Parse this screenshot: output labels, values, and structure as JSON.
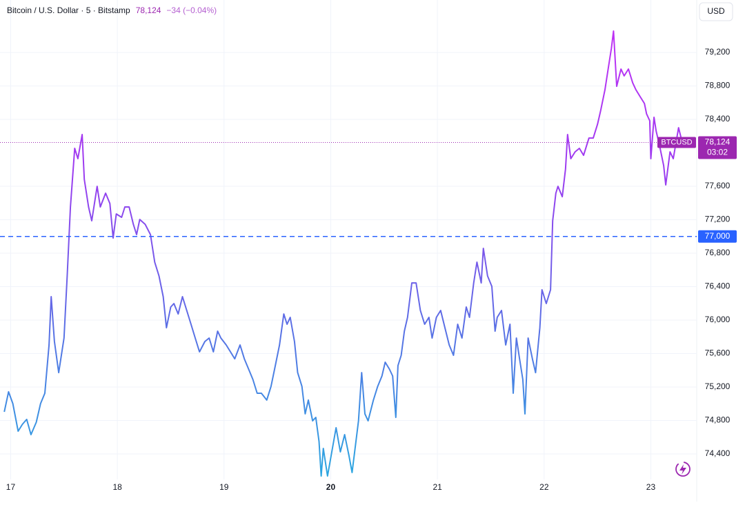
{
  "chart_data": {
    "type": "line",
    "title": "Bitcoin / U.S. Dollar · 5 · Bitstamp",
    "price": "78,124",
    "change": "−34 (−0.04%)",
    "currency": "USD",
    "x": [
      16.94,
      16.98,
      17.02,
      17.07,
      17.11,
      17.15,
      17.19,
      17.24,
      17.28,
      17.32,
      17.36,
      17.38,
      17.41,
      17.45,
      17.5,
      17.53,
      17.56,
      17.6,
      17.63,
      17.67,
      17.69,
      17.73,
      17.76,
      17.81,
      17.84,
      17.89,
      17.93,
      17.96,
      17.99,
      18.04,
      18.07,
      18.11,
      18.15,
      18.18,
      18.21,
      18.26,
      18.31,
      18.35,
      18.39,
      18.43,
      18.46,
      18.5,
      18.53,
      18.57,
      18.61,
      18.65,
      18.69,
      18.73,
      18.77,
      18.82,
      18.86,
      18.9,
      18.94,
      18.97,
      19.02,
      19.06,
      19.1,
      19.15,
      19.19,
      19.23,
      19.27,
      19.31,
      19.35,
      19.4,
      19.44,
      19.48,
      19.52,
      19.56,
      19.59,
      19.62,
      19.66,
      19.69,
      19.73,
      19.76,
      19.79,
      19.83,
      19.86,
      19.89,
      19.91,
      19.93,
      19.97,
      20.01,
      20.05,
      20.09,
      20.13,
      20.17,
      20.2,
      20.22,
      20.26,
      20.29,
      20.32,
      20.35,
      20.4,
      20.44,
      20.48,
      20.51,
      20.55,
      20.58,
      20.61,
      20.63,
      20.66,
      20.69,
      20.72,
      20.76,
      20.8,
      20.84,
      20.88,
      20.92,
      20.95,
      20.99,
      21.03,
      21.07,
      21.11,
      21.15,
      21.19,
      21.23,
      21.27,
      21.3,
      21.34,
      21.37,
      21.41,
      21.43,
      21.47,
      21.51,
      21.54,
      21.56,
      21.6,
      21.64,
      21.68,
      21.71,
      21.74,
      21.77,
      21.8,
      21.82,
      21.85,
      21.89,
      21.92,
      21.96,
      21.98,
      22.02,
      22.06,
      22.08,
      22.11,
      22.13,
      22.17,
      22.2,
      22.22,
      22.25,
      22.29,
      22.33,
      22.37,
      22.42,
      22.46,
      22.5,
      22.53,
      22.57,
      22.6,
      22.63,
      22.65,
      22.68,
      22.72,
      22.75,
      22.79,
      22.83,
      22.86,
      22.9,
      22.94,
      22.96,
      22.99,
      23.0,
      23.03,
      23.05,
      23.08,
      23.12,
      23.14,
      23.18,
      23.21,
      23.26,
      23.3,
      23.34,
      23.41
    ],
    "series": [
      {
        "name": "BTCUSD",
        "gradient": [
          "#2aa8e0",
          "#5a6fe5",
          "#9b3cf0",
          "#c130f5"
        ],
        "values": [
          74903,
          75143,
          75002,
          74672,
          74755,
          74813,
          74631,
          74780,
          75002,
          75126,
          75703,
          76281,
          75745,
          75373,
          75786,
          76528,
          77353,
          78054,
          77930,
          78219,
          77683,
          77353,
          77188,
          77600,
          77353,
          77518,
          77394,
          76982,
          77270,
          77229,
          77353,
          77353,
          77146,
          77023,
          77204,
          77146,
          77023,
          76693,
          76528,
          76281,
          75909,
          76157,
          76198,
          76074,
          76281,
          76116,
          75951,
          75786,
          75621,
          75745,
          75786,
          75621,
          75868,
          75786,
          75703,
          75621,
          75538,
          75703,
          75538,
          75415,
          75291,
          75126,
          75126,
          75044,
          75208,
          75456,
          75703,
          76074,
          75951,
          76033,
          75745,
          75373,
          75208,
          74879,
          75044,
          74796,
          74837,
          74549,
          74136,
          74466,
          74136,
          74425,
          74714,
          74425,
          74631,
          74384,
          74178,
          74384,
          74796,
          75373,
          74879,
          74796,
          75044,
          75208,
          75332,
          75497,
          75415,
          75332,
          74837,
          75456,
          75580,
          75868,
          76033,
          76445,
          76445,
          76116,
          75951,
          76033,
          75786,
          76033,
          76116,
          75909,
          75703,
          75580,
          75951,
          75786,
          76157,
          76033,
          76445,
          76693,
          76445,
          76858,
          76528,
          76404,
          75868,
          76033,
          76116,
          75703,
          75951,
          75126,
          75786,
          75538,
          75291,
          74879,
          75786,
          75538,
          75373,
          75909,
          76363,
          76198,
          76363,
          77188,
          77518,
          77600,
          77476,
          77806,
          78219,
          77930,
          78012,
          78054,
          77971,
          78177,
          78177,
          78342,
          78507,
          78755,
          79002,
          79249,
          79456,
          78796,
          79002,
          78920,
          79002,
          78837,
          78755,
          78672,
          78590,
          78466,
          78384,
          77930,
          78425,
          78260,
          78095,
          77847,
          77617,
          78012,
          77930,
          78301,
          78095,
          78136,
          78124
        ]
      }
    ],
    "xlim": [
      16.9,
      23.43
    ],
    "ylim": [
      74095,
      79580
    ],
    "xticks": [
      17,
      18,
      19,
      20,
      21,
      22,
      23
    ],
    "bold_xticks": [
      20
    ],
    "yticks": [
      {
        "value": 74400,
        "label": "74,400"
      },
      {
        "value": 74800,
        "label": "74,800"
      },
      {
        "value": 75200,
        "label": "75,200"
      },
      {
        "value": 75600,
        "label": "75,600"
      },
      {
        "value": 76000,
        "label": "76,000"
      },
      {
        "value": 76400,
        "label": "76,400"
      },
      {
        "value": 76800,
        "label": "76,800"
      },
      {
        "value": 77200,
        "label": "77,200"
      },
      {
        "value": 77600,
        "label": "77,600"
      },
      {
        "value": 78400,
        "label": "78,400"
      },
      {
        "value": 78800,
        "label": "78,800"
      },
      {
        "value": 79200,
        "label": "79,200"
      }
    ],
    "grid": true,
    "alert_line": {
      "value": 77000,
      "label": "77,000",
      "color": "#2962ff"
    },
    "last_price": {
      "value": 78124,
      "label": "78,124",
      "symbol": "BTCUSD",
      "timer": "03:02",
      "color": "#9c27b0"
    }
  }
}
